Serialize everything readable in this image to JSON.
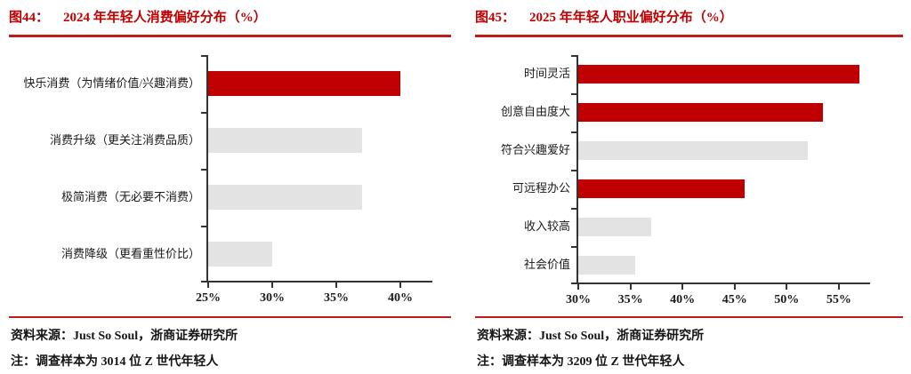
{
  "page": {
    "background": "#ffffff",
    "accent_color": "#c00000"
  },
  "charts": [
    {
      "label": "图44：",
      "title": "2024 年年轻人消费偏好分布（%）",
      "source": "资料来源：Just So Soul，浙商证券研究所",
      "note": "注：调查样本为 3014 位 Z 世代年轻人",
      "chart_data": {
        "type": "bar",
        "orientation": "horizontal",
        "title": "2024 年年轻人消费偏好分布（%）",
        "categories": [
          "快乐消费（为情绪价值/兴趣消费）",
          "消费升级（更关注消费品质）",
          "极简消费（无必要不消费）",
          "消费降级（更看重性价比）"
        ],
        "values": [
          40,
          37,
          37,
          30
        ],
        "unit": "%",
        "bar_colors": [
          "#c00000",
          "#e3e3e3",
          "#e3e3e3",
          "#e3e3e3"
        ],
        "highlight_color": "#c00000",
        "muted_color": "#e3e3e3",
        "xlim": [
          25,
          42.5
        ],
        "xticks": [
          25,
          30,
          35,
          40
        ],
        "tick_suffix": "%",
        "grid": false,
        "legend": "none"
      }
    },
    {
      "label": "图45：",
      "title": "2025 年年轻人职业偏好分布（%）",
      "source": "资料来源：Just So Soul，浙商证券研究所",
      "note": "注：调查样本为 3209 位 Z 世代年轻人",
      "chart_data": {
        "type": "bar",
        "orientation": "horizontal",
        "title": "2025 年年轻人职业偏好分布（%）",
        "categories": [
          "时间灵活",
          "创意自由度大",
          "符合兴趣爱好",
          "可远程办公",
          "收入较高",
          "社会价值"
        ],
        "values": [
          57,
          53.5,
          52,
          46,
          37,
          35.5
        ],
        "unit": "%",
        "bar_colors": [
          "#c00000",
          "#c00000",
          "#e3e3e3",
          "#c00000",
          "#e3e3e3",
          "#e3e3e3"
        ],
        "highlight_color": "#c00000",
        "muted_color": "#e3e3e3",
        "xlim": [
          30,
          58
        ],
        "xticks": [
          30,
          35,
          40,
          45,
          50,
          55
        ],
        "tick_suffix": "%",
        "grid": false,
        "legend": "none"
      }
    }
  ]
}
